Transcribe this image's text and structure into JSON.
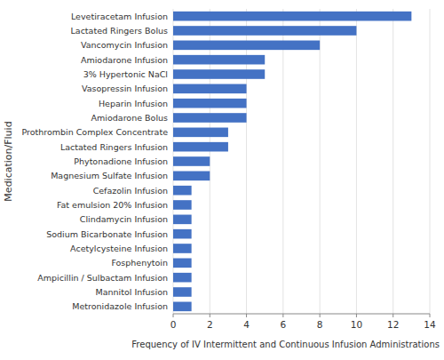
{
  "chart_data": {
    "type": "bar",
    "orientation": "horizontal",
    "categories": [
      "Levetiracetam Infusion",
      "Lactated Ringers Bolus",
      "Vancomycin Infusion",
      "Amiodarone Infusion",
      "3% Hypertonic NaCl",
      "Vasopressin Infusion",
      "Heparin Infusion",
      "Amiodarone Bolus",
      "Prothrombin Complex Concentrate",
      "Lactated Ringers Infusion",
      "Phytonadione Infusion",
      "Magnesium Sulfate Infusion",
      "Cefazolin Infusion",
      "Fat emulsion 20% Infusion",
      "Clindamycin Infusion",
      "Sodium Bicarbonate Infusion",
      "Acetylcysteine Infusion",
      "Fosphenytoin",
      "Ampicillin / Sulbactam Infusion",
      "Mannitol Infusion",
      "Metronidazole Infusion"
    ],
    "values": [
      13,
      10,
      8,
      5,
      5,
      4,
      4,
      4,
      3,
      3,
      2,
      2,
      1,
      1,
      1,
      1,
      1,
      1,
      1,
      1,
      1
    ],
    "color": "#4472C4",
    "xlabel": "Frequency of IV Intermittent and Continuous Infusion Administrations",
    "ylabel": "Medication/Fluid",
    "xlim": [
      0,
      14
    ],
    "xticks": [
      0,
      2,
      4,
      6,
      8,
      10,
      12,
      14
    ],
    "grid": true
  }
}
